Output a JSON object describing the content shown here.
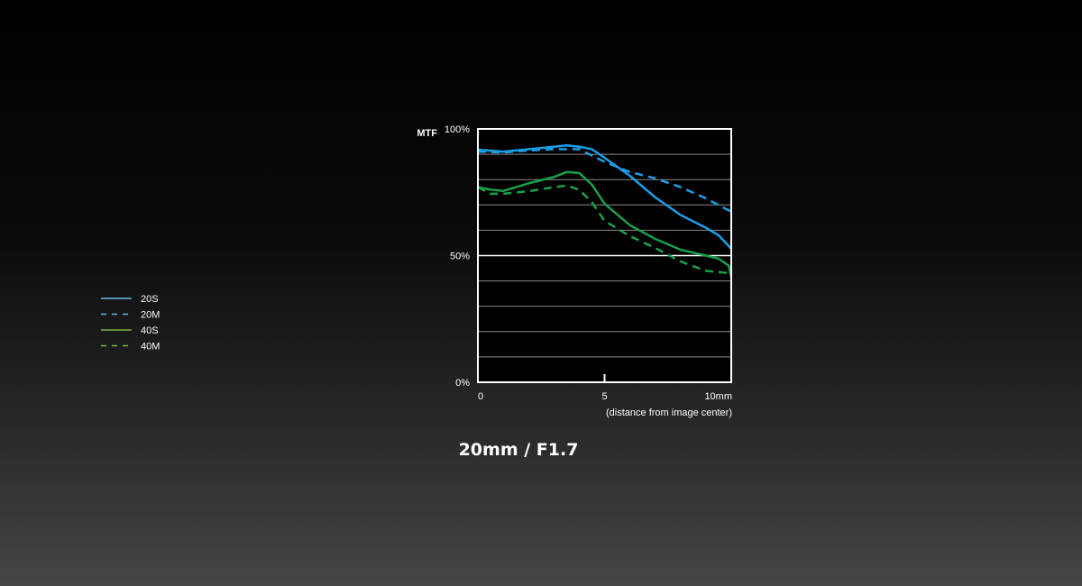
{
  "chart_data": {
    "type": "line",
    "title": "20mm / F1.7",
    "ylabel": "MTF",
    "xlabel": "(distance from image center)",
    "xlim": [
      0,
      10
    ],
    "ylim": [
      0,
      100
    ],
    "grid": true,
    "x_ticks": [
      {
        "value": 0,
        "label": "0"
      },
      {
        "value": 5,
        "label": "5"
      },
      {
        "value": 10,
        "label": "10mm"
      }
    ],
    "y_ticks": [
      {
        "value": 100,
        "label": "100%"
      },
      {
        "value": 50,
        "label": "50%"
      },
      {
        "value": 0,
        "label": "0%"
      }
    ],
    "legend_position": "left",
    "series": [
      {
        "name": "20S",
        "color": "#1a9fe6",
        "legend_color": "#6ab4e0",
        "dashed": false,
        "x": [
          0,
          1,
          2,
          3,
          3.5,
          4,
          4.5,
          5,
          6,
          7,
          8,
          9,
          9.5,
          10
        ],
        "y": [
          91.8,
          91,
          92,
          93,
          93.5,
          93,
          92,
          88.6,
          81.5,
          73,
          66,
          61,
          58,
          52.7
        ]
      },
      {
        "name": "20M",
        "color": "#1a9fe6",
        "legend_color": "#6ab4e0",
        "dashed": true,
        "x": [
          0,
          1,
          2,
          3,
          4,
          5,
          6,
          7,
          8,
          9,
          10
        ],
        "y": [
          91,
          90.7,
          91.5,
          92,
          92,
          87,
          83,
          80.5,
          77,
          72.6,
          67.3
        ]
      },
      {
        "name": "40S",
        "color": "#1aa04a",
        "legend_color": "#7cb342",
        "dashed": false,
        "x": [
          0,
          0.5,
          1,
          2,
          3,
          3.5,
          4,
          4.5,
          5,
          6,
          7,
          8,
          9,
          9.5,
          9.9,
          10
        ],
        "y": [
          77,
          76,
          75.5,
          78.5,
          81,
          83,
          82.6,
          78,
          70.5,
          62,
          56.6,
          52.3,
          50,
          48.8,
          46,
          41.6
        ]
      },
      {
        "name": "40M",
        "color": "#1aa04a",
        "legend_color": "#7cb342",
        "dashed": true,
        "x": [
          0,
          0.5,
          1,
          2,
          3,
          3.5,
          4,
          4.5,
          5,
          6,
          7,
          8,
          9,
          10
        ],
        "y": [
          77,
          74.4,
          74.4,
          75.4,
          77,
          77.6,
          76,
          71,
          63.7,
          57.7,
          53,
          47.7,
          44,
          43
        ]
      }
    ]
  }
}
